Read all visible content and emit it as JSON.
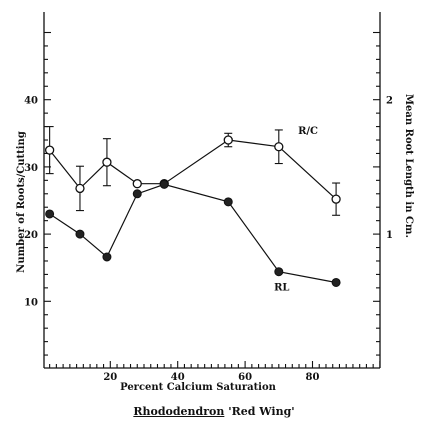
{
  "chart_data": {
    "type": "line",
    "title": "",
    "caption": {
      "genus": "Rhododendron",
      "cultivar": "'Red Wing'"
    },
    "xlabel": "Percent Calcium Saturation",
    "ylabel": "Number of Roots/Cutting",
    "y2label": "Mean Root Length in Cm.",
    "xlim": [
      0,
      100
    ],
    "ylim": [
      0,
      50
    ],
    "y2lim": [
      0,
      2.5
    ],
    "x_ticks": [
      20,
      40,
      60,
      80
    ],
    "y_ticks": [
      10,
      20,
      30,
      40
    ],
    "y2_ticks": [
      1,
      2
    ],
    "series": [
      {
        "name": "R/C",
        "axis": "left",
        "marker": "open-circle",
        "x": [
          2,
          11,
          19,
          28,
          36,
          55,
          70,
          87
        ],
        "y": [
          32.5,
          26.8,
          30.7,
          27.5,
          27.5,
          34.0,
          33.0,
          25.2
        ],
        "err": [
          3.5,
          3.3,
          3.5,
          0,
          0,
          1.0,
          2.5,
          2.4
        ]
      },
      {
        "name": "RL",
        "axis": "right",
        "marker": "filled-circle",
        "x": [
          2,
          11,
          19,
          28,
          36,
          55,
          70,
          87
        ],
        "y": [
          1.15,
          1.0,
          0.83,
          1.3,
          1.37,
          1.24,
          0.72,
          0.64
        ]
      }
    ]
  }
}
